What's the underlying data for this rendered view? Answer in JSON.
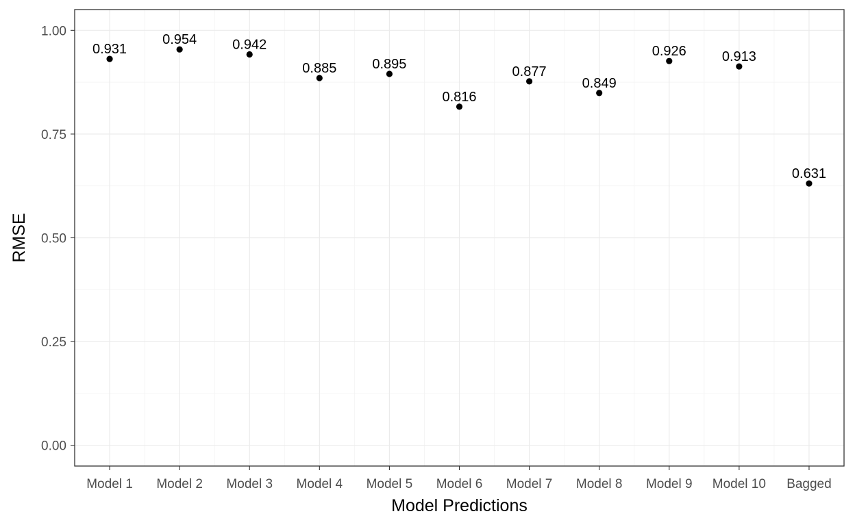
{
  "chart_data": {
    "type": "scatter",
    "title": "",
    "xlabel": "Model Predictions",
    "ylabel": "RMSE",
    "categories": [
      "Model 1",
      "Model 2",
      "Model 3",
      "Model 4",
      "Model 5",
      "Model 6",
      "Model 7",
      "Model 8",
      "Model 9",
      "Model 10",
      "Bagged"
    ],
    "values": [
      0.931,
      0.954,
      0.942,
      0.885,
      0.895,
      0.816,
      0.877,
      0.849,
      0.926,
      0.913,
      0.631
    ],
    "data_labels": [
      "0.931",
      "0.954",
      "0.942",
      "0.885",
      "0.895",
      "0.816",
      "0.877",
      "0.849",
      "0.926",
      "0.913",
      "0.631"
    ],
    "ylim": [
      -0.05,
      1.05
    ],
    "y_ticks": [
      0.0,
      0.25,
      0.5,
      0.75,
      1.0
    ],
    "y_tick_labels": [
      "0.00",
      "0.25",
      "0.50",
      "0.75",
      "1.00"
    ],
    "grid": true,
    "legend": "none",
    "colors": {
      "point": "#000000",
      "grid": "#ebebeb",
      "border": "#333333",
      "tick_text": "#4d4d4d"
    }
  }
}
